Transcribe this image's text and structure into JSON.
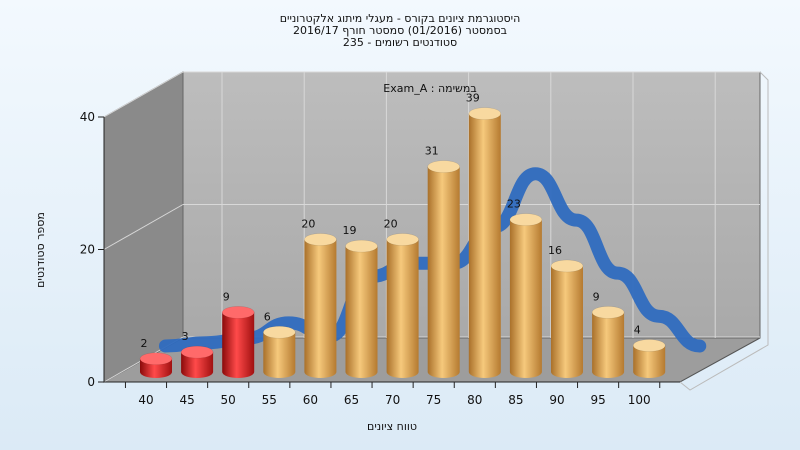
{
  "chart_data": {
    "type": "bar",
    "title_lines": [
      "היסטוגרמת ציונים בקורס - מעגלי מיתוג אלקטרוניים",
      "בסמסטר  (01/2016)  סמסטר חורף 2016/17",
      "סטודנטים רשומים - 235"
    ],
    "annotation": "Exam_A : במשימה",
    "xlabel": "טווח ציונים",
    "ylabel": "מספר סטודנטים",
    "categories": [
      "40",
      "45",
      "50",
      "55",
      "60",
      "65",
      "70",
      "75",
      "80",
      "85",
      "90",
      "95",
      "100"
    ],
    "values": [
      2,
      3,
      9,
      6,
      20,
      19,
      20,
      31,
      39,
      23,
      16,
      9,
      4
    ],
    "yticks": [
      0,
      20,
      40
    ],
    "ylim": [
      0,
      40
    ],
    "grid": true,
    "bar_colors": {
      "fail": "#e02020",
      "pass": "#e8a84a"
    },
    "fail_categories": [
      "40",
      "45",
      "50"
    ],
    "trend_line_color": "#2f6bbf",
    "trend_values": [
      0,
      0.5,
      1.2,
      3.5,
      1.5,
      10.5,
      12.5,
      12.5,
      18,
      26,
      19,
      11,
      4.5,
      0
    ]
  }
}
